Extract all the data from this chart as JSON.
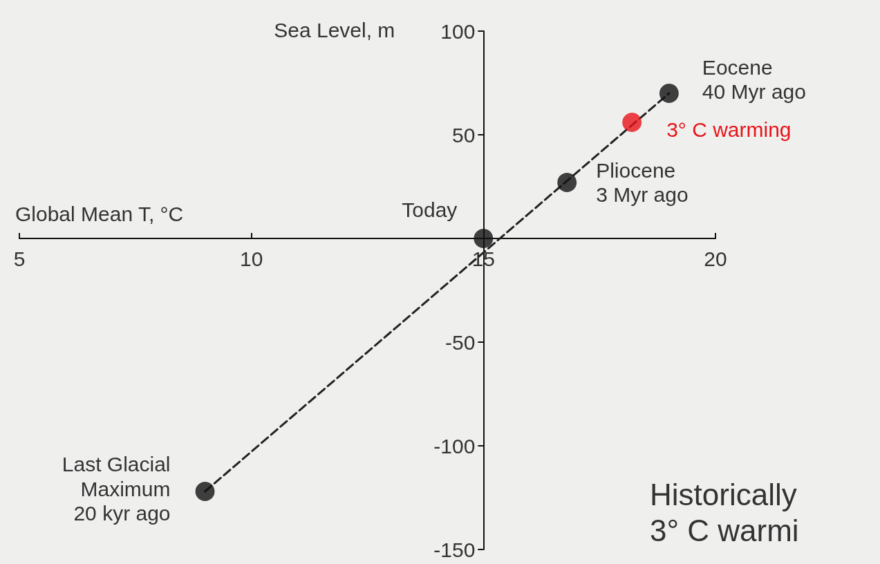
{
  "chart_data": {
    "type": "scatter",
    "xlabel": "Global Mean T, °C",
    "ylabel": "Sea Level, m",
    "xlim": [
      5,
      20
    ],
    "xticks": [
      5,
      10,
      15,
      20
    ],
    "ylim": [
      -150,
      100
    ],
    "yticks": [
      -150,
      -100,
      -50,
      50,
      100
    ],
    "grid": false,
    "marker": "circle",
    "series": [
      {
        "type": "line",
        "x": [
          9,
          19
        ],
        "values": [
          -122,
          70
        ],
        "color": "#222222",
        "line_style": "dashed",
        "marker": "none"
      },
      {
        "x": [
          9,
          15,
          16.8,
          19
        ],
        "values": [
          -122,
          0,
          27,
          70
        ],
        "color": "#111111"
      },
      {
        "x": [
          18.2
        ],
        "values": [
          56
        ],
        "color": "#e8141a"
      }
    ],
    "annotations": [
      {
        "text": "Last Glacial\nMaximum\n20 kyr ago",
        "x": 9,
        "y": -122
      },
      {
        "text": "Today",
        "x": 15,
        "y": 0
      },
      {
        "text": "Pliocene\n3 Myr ago",
        "x": 16.8,
        "y": 27
      },
      {
        "text": "3° C warming",
        "x": 18.2,
        "y": 56
      },
      {
        "text": "Eocene\n40 Myr ago",
        "x": 19,
        "y": 70
      },
      "Historically\n3° C warmi"
    ]
  }
}
